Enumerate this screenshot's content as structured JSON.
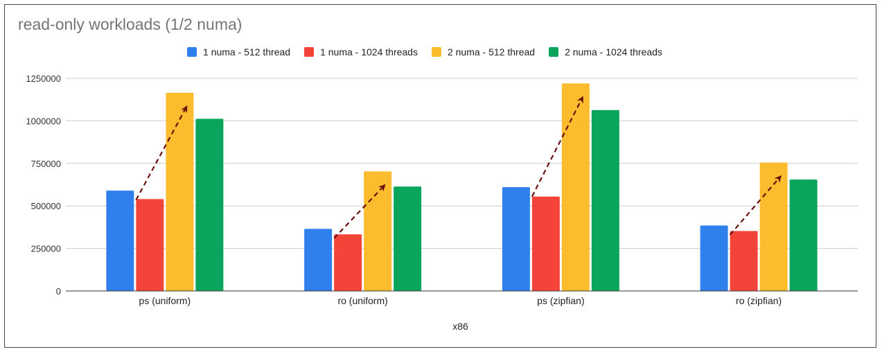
{
  "chart_data": {
    "type": "bar",
    "title": "read-only workloads (1/2 numa)",
    "xlabel": "x86",
    "ylabel": "",
    "ylim": [
      0,
      1250000
    ],
    "yticks": [
      0,
      250000,
      500000,
      750000,
      1000000,
      1250000
    ],
    "grid": true,
    "legend_position": "top-center",
    "categories": [
      "ps (uniform)",
      "ro (uniform)",
      "ps (zipfian)",
      "ro (zipfian)"
    ],
    "series": [
      {
        "name": "1 numa - 512 thread",
        "color": "#2f80ed",
        "values": [
          590000,
          365000,
          610000,
          385000
        ]
      },
      {
        "name": "1 numa - 1024 threads",
        "color": "#f4443a",
        "values": [
          540000,
          333000,
          555000,
          352000
        ]
      },
      {
        "name": "2 numa - 512 thread",
        "color": "#fbbc2d",
        "values": [
          1165000,
          703000,
          1220000,
          755000
        ]
      },
      {
        "name": "2 numa - 1024 threads",
        "color": "#0aa55c",
        "values": [
          1012000,
          614000,
          1063000,
          655000
        ]
      }
    ],
    "annotations": [
      {
        "type": "dashed-arrow",
        "color": "#6b0f0f",
        "from_series": 0,
        "to_series": 2,
        "description": "gain from 1 numa to 2 numa (512 threads)"
      }
    ]
  }
}
